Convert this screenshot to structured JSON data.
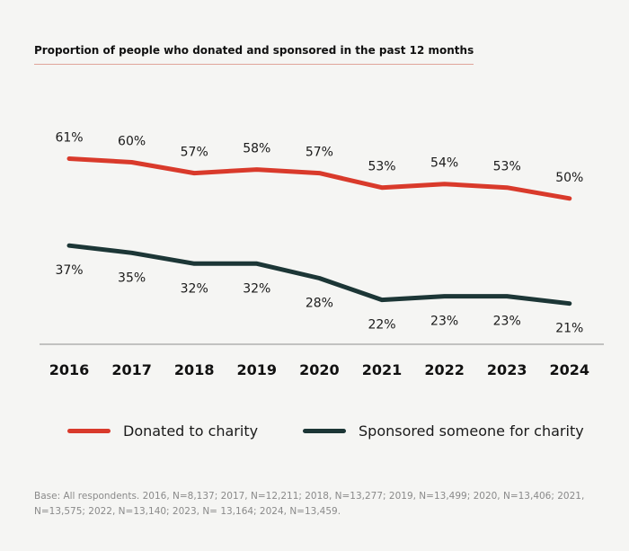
{
  "chart_data": {
    "type": "line",
    "title": "Proportion of people who donated and sponsored in the past 12 months",
    "x": [
      "2016",
      "2017",
      "2018",
      "2019",
      "2020",
      "2021",
      "2022",
      "2023",
      "2024"
    ],
    "series": [
      {
        "name": "Donated to charity",
        "color": "#d93a2b",
        "values": [
          61,
          60,
          57,
          58,
          57,
          53,
          54,
          53,
          50
        ],
        "labels": [
          "61%",
          "60%",
          "57%",
          "58%",
          "57%",
          "53%",
          "54%",
          "53%",
          "50%"
        ]
      },
      {
        "name": "Sponsored someone for charity",
        "color": "#1c3636",
        "values": [
          37,
          35,
          32,
          32,
          28,
          22,
          23,
          23,
          21
        ],
        "labels": [
          "37%",
          "35%",
          "32%",
          "32%",
          "28%",
          "22%",
          "23%",
          "23%",
          "21%"
        ]
      }
    ],
    "grid": false,
    "legend": "bottom"
  },
  "footnote": "Base: All respondents. 2016, N=8,137; 2017, N=12,211; 2018, N=13,277; 2019, N=13,499; 2020, N=13,406; 2021, N=13,575; 2022, N=13,140; 2023, N= 13,164; 2024, N=13,459."
}
